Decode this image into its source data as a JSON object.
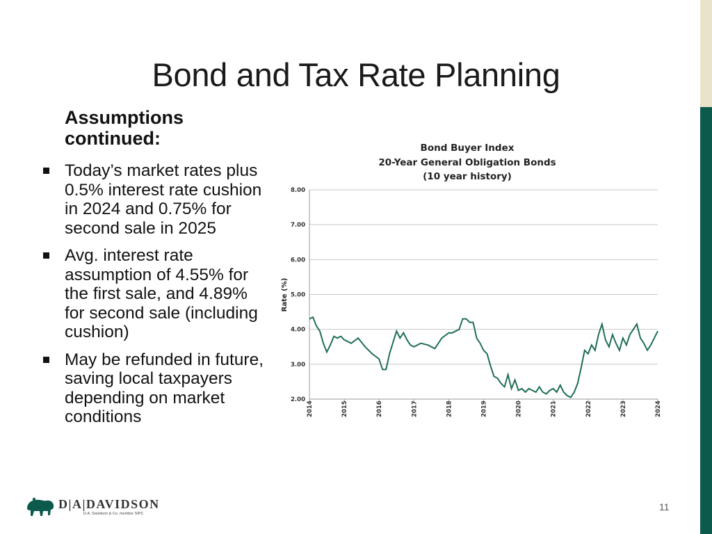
{
  "slide": {
    "title": "Bond and Tax Rate Planning",
    "subheading": "Assumptions continued:",
    "bullets": [
      "Today’s market rates plus 0.5% interest rate cushion in 2024 and 0.75% for second sale in 2025",
      "Avg. interest rate assumption of 4.55% for the first sale, and 4.89% for second sale (including cushion)",
      "May be refunded in future, saving local taxpayers depending on market conditions"
    ],
    "page_number": "11"
  },
  "logo": {
    "name": "D|A|DAVIDSON",
    "subtitle": "D.A. Davidson & Co. member SIPC",
    "icon": "bison-icon"
  },
  "colors": {
    "accent_green": "#0b5a4c",
    "accent_tan": "#e8e3c9",
    "line": "#1f6e55"
  },
  "chart_data": {
    "type": "line",
    "title_lines": [
      "Bond Buyer Index",
      "20-Year General Obligation Bonds",
      "(10 year history)"
    ],
    "ylabel": "Rate (%)",
    "xlabel": "",
    "ylim": [
      2.0,
      8.0
    ],
    "yticks": [
      "2.00",
      "3.00",
      "4.00",
      "5.00",
      "6.00",
      "7.00",
      "8.00"
    ],
    "xlim": [
      2014,
      2024
    ],
    "xticks": [
      "2014",
      "2015",
      "2016",
      "2017",
      "2018",
      "2019",
      "2020",
      "2021",
      "2022",
      "2023",
      "2024"
    ],
    "grid": true,
    "series": [
      {
        "x": [
          2014.0,
          2014.1,
          2014.2,
          2014.3,
          2014.4,
          2014.5,
          2014.6,
          2014.7,
          2014.8,
          2014.9,
          2015.0,
          2015.2,
          2015.4,
          2015.6,
          2015.8,
          2016.0,
          2016.1,
          2016.2,
          2016.3,
          2016.5,
          2016.6,
          2016.7,
          2016.8,
          2016.9,
          2017.0,
          2017.2,
          2017.4,
          2017.6,
          2017.8,
          2018.0,
          2018.1,
          2018.2,
          2018.3,
          2018.4,
          2018.5,
          2018.6,
          2018.7,
          2018.8,
          2018.9,
          2019.0,
          2019.1,
          2019.2,
          2019.3,
          2019.4,
          2019.5,
          2019.6,
          2019.7,
          2019.8,
          2019.9,
          2020.0,
          2020.1,
          2020.2,
          2020.3,
          2020.4,
          2020.5,
          2020.6,
          2020.7,
          2020.8,
          2020.9,
          2021.0,
          2021.1,
          2021.2,
          2021.3,
          2021.4,
          2021.5,
          2021.6,
          2021.7,
          2021.8,
          2021.9,
          2022.0,
          2022.1,
          2022.2,
          2022.3,
          2022.4,
          2022.5,
          2022.6,
          2022.7,
          2022.8,
          2022.9,
          2023.0,
          2023.1,
          2023.2,
          2023.3,
          2023.4,
          2023.5,
          2023.6,
          2023.7,
          2023.8,
          2023.9,
          2024.0
        ],
        "values": [
          4.3,
          4.35,
          4.1,
          3.95,
          3.6,
          3.35,
          3.55,
          3.8,
          3.75,
          3.8,
          3.7,
          3.6,
          3.75,
          3.5,
          3.3,
          3.15,
          2.85,
          2.85,
          3.3,
          3.95,
          3.75,
          3.9,
          3.7,
          3.55,
          3.5,
          3.6,
          3.55,
          3.45,
          3.75,
          3.9,
          3.9,
          3.95,
          4.0,
          4.3,
          4.3,
          4.2,
          4.2,
          3.75,
          3.6,
          3.4,
          3.3,
          2.95,
          2.65,
          2.6,
          2.45,
          2.35,
          2.7,
          2.3,
          2.55,
          2.25,
          2.3,
          2.2,
          2.3,
          2.25,
          2.2,
          2.35,
          2.2,
          2.15,
          2.25,
          2.3,
          2.2,
          2.4,
          2.2,
          2.1,
          2.05,
          2.2,
          2.45,
          2.9,
          3.4,
          3.3,
          3.55,
          3.4,
          3.85,
          4.15,
          3.7,
          3.5,
          3.85,
          3.6,
          3.4,
          3.75,
          3.55,
          3.85,
          4.0,
          4.15,
          3.75,
          3.6,
          3.4,
          3.55,
          3.75,
          3.95
        ]
      }
    ]
  }
}
